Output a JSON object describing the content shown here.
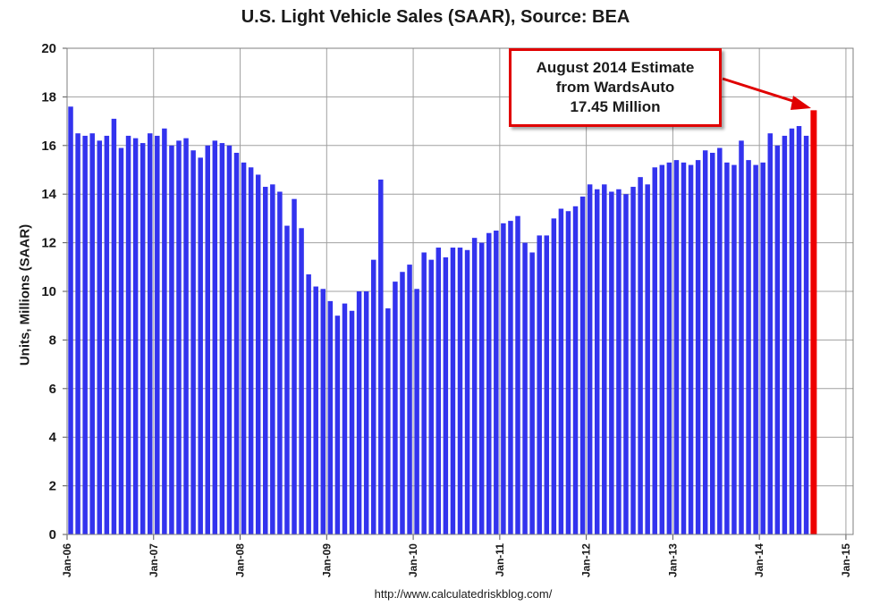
{
  "chart_data": {
    "type": "bar",
    "title": "U.S. Light Vehicle Sales (SAAR), Source: BEA",
    "ylabel": "Units, Millions (SAAR)",
    "xlabel": "",
    "ylim": [
      0,
      20
    ],
    "yticks": [
      0,
      2,
      4,
      6,
      8,
      10,
      12,
      14,
      16,
      18,
      20
    ],
    "grid": true,
    "xtick_labels": [
      "Jan-06",
      "Jan-07",
      "Jan-08",
      "Jan-09",
      "Jan-10",
      "Jan-11",
      "Jan-12",
      "Jan-13",
      "Jan-14",
      "Jan-15"
    ],
    "series": [
      {
        "name": "Light Vehicle Sales",
        "color": "#3333ee",
        "start": "Jan-06",
        "values": [
          17.6,
          16.5,
          16.4,
          16.5,
          16.2,
          16.4,
          17.1,
          15.9,
          16.4,
          16.3,
          16.1,
          16.5,
          16.4,
          16.7,
          16.0,
          16.2,
          16.3,
          15.8,
          15.5,
          16.0,
          16.2,
          16.1,
          16.0,
          15.7,
          15.3,
          15.1,
          14.8,
          14.3,
          14.4,
          14.1,
          12.7,
          13.8,
          12.6,
          10.7,
          10.2,
          10.1,
          9.6,
          9.0,
          9.5,
          9.2,
          10.0,
          10.0,
          11.3,
          14.6,
          9.3,
          10.4,
          10.8,
          11.1,
          10.1,
          11.6,
          11.3,
          11.8,
          11.4,
          11.8,
          11.8,
          11.7,
          12.2,
          12.0,
          12.4,
          12.5,
          12.8,
          12.9,
          13.1,
          12.0,
          11.6,
          12.3,
          12.3,
          13.0,
          13.4,
          13.3,
          13.5,
          13.9,
          14.4,
          14.2,
          14.4,
          14.1,
          14.2,
          14.0,
          14.3,
          14.7,
          14.4,
          15.1,
          15.2,
          15.3,
          15.4,
          15.3,
          15.2,
          15.4,
          15.8,
          15.7,
          15.9,
          15.3,
          15.2,
          16.2,
          15.4,
          15.2,
          15.3,
          16.5,
          16.0,
          16.4,
          16.7,
          16.8,
          16.4
        ]
      }
    ],
    "highlight": {
      "label": "Aug-14",
      "value": 17.45,
      "color": "#ee0000"
    },
    "annotation": {
      "lines": [
        "August 2014 Estimate",
        "from WardsAuto",
        "17.45 Million"
      ],
      "color": "#e00000"
    },
    "footer": "http://www.calculatedriskblog.com/"
  },
  "colors": {
    "bar": "#3333ee",
    "highlight": "#ee0000",
    "grid": "#a0a0a0",
    "plot_border": "#7f7f7f"
  }
}
